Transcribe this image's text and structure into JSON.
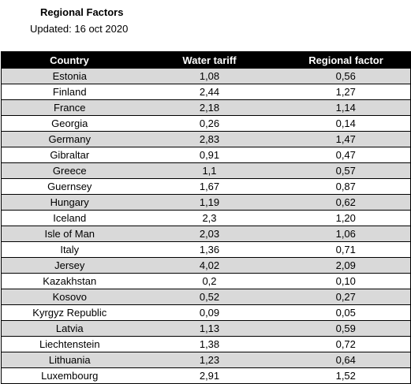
{
  "header": {
    "title": "Regional Factors",
    "updated": "Updated: 16 oct 2020"
  },
  "table": {
    "columns": [
      "Country",
      "Water tariff",
      "Regional factor"
    ],
    "rows": [
      {
        "country": "Estonia",
        "water_tariff": "1,08",
        "regional_factor": "0,56"
      },
      {
        "country": "Finland",
        "water_tariff": "2,44",
        "regional_factor": "1,27"
      },
      {
        "country": "France",
        "water_tariff": "2,18",
        "regional_factor": "1,14"
      },
      {
        "country": "Georgia",
        "water_tariff": "0,26",
        "regional_factor": "0,14"
      },
      {
        "country": "Germany",
        "water_tariff": "2,83",
        "regional_factor": "1,47"
      },
      {
        "country": "Gibraltar",
        "water_tariff": "0,91",
        "regional_factor": "0,47"
      },
      {
        "country": "Greece",
        "water_tariff": "1,1",
        "regional_factor": "0,57"
      },
      {
        "country": "Guernsey",
        "water_tariff": "1,67",
        "regional_factor": "0,87"
      },
      {
        "country": "Hungary",
        "water_tariff": "1,19",
        "regional_factor": "0,62"
      },
      {
        "country": "Iceland",
        "water_tariff": "2,3",
        "regional_factor": "1,20"
      },
      {
        "country": "Isle of Man",
        "water_tariff": "2,03",
        "regional_factor": "1,06"
      },
      {
        "country": "Italy",
        "water_tariff": "1,36",
        "regional_factor": "0,71"
      },
      {
        "country": "Jersey",
        "water_tariff": "4,02",
        "regional_factor": "2,09"
      },
      {
        "country": "Kazakhstan",
        "water_tariff": "0,2",
        "regional_factor": "0,10"
      },
      {
        "country": "Kosovo",
        "water_tariff": "0,52",
        "regional_factor": "0,27"
      },
      {
        "country": "Kyrgyz Republic",
        "water_tariff": "0,09",
        "regional_factor": "0,05"
      },
      {
        "country": "Latvia",
        "water_tariff": "1,13",
        "regional_factor": "0,59"
      },
      {
        "country": "Liechtenstein",
        "water_tariff": "1,38",
        "regional_factor": "0,72"
      },
      {
        "country": "Lithuania",
        "water_tariff": "1,23",
        "regional_factor": "0,64"
      },
      {
        "country": "Luxembourg",
        "water_tariff": "2,91",
        "regional_factor": "1,52"
      }
    ]
  },
  "colors": {
    "header_background": "#000000",
    "header_text": "#ffffff",
    "shaded_row": "#d9d9d9",
    "plain_row": "#ffffff",
    "border": "#000000"
  }
}
